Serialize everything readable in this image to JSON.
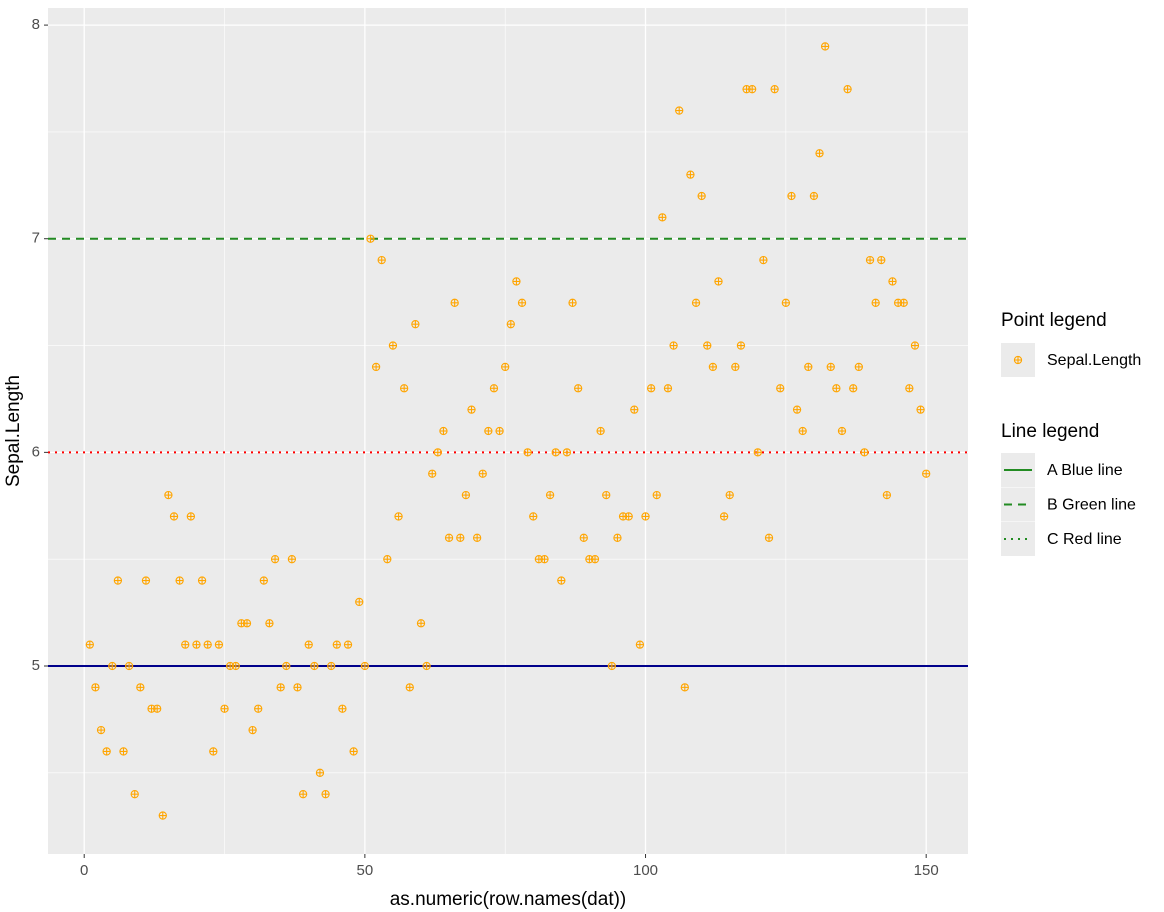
{
  "chart_data": {
    "type": "scatter",
    "x_label": "as.numeric(row.names(dat))",
    "y_label": "Sepal.Length",
    "xlim": [
      -6.45,
      157.45
    ],
    "xticks": [
      0,
      50,
      100,
      150
    ],
    "xminorticks": [
      25,
      75,
      125
    ],
    "ylim": [
      4.12,
      8.08
    ],
    "yticks": [
      5,
      6,
      7,
      8
    ],
    "yminorticks": [
      4.5,
      5.5,
      6.5,
      7.5
    ],
    "grid": true,
    "point_legend_title": "Point legend",
    "line_legend_title": "Line legend",
    "series": [
      {
        "name": "Sepal.Length",
        "color": "orange",
        "x": [
          1,
          2,
          3,
          4,
          5,
          6,
          7,
          8,
          9,
          10,
          11,
          12,
          13,
          14,
          15,
          16,
          17,
          18,
          19,
          20,
          21,
          22,
          23,
          24,
          25,
          26,
          27,
          28,
          29,
          30,
          31,
          32,
          33,
          34,
          35,
          36,
          37,
          38,
          39,
          40,
          41,
          42,
          43,
          44,
          45,
          46,
          47,
          48,
          49,
          50,
          51,
          52,
          53,
          54,
          55,
          56,
          57,
          58,
          59,
          60,
          61,
          62,
          63,
          64,
          65,
          66,
          67,
          68,
          69,
          70,
          71,
          72,
          73,
          74,
          75,
          76,
          77,
          78,
          79,
          80,
          81,
          82,
          83,
          84,
          85,
          86,
          87,
          88,
          89,
          90,
          91,
          92,
          93,
          94,
          95,
          96,
          97,
          98,
          99,
          100,
          101,
          102,
          103,
          104,
          105,
          106,
          107,
          108,
          109,
          110,
          111,
          112,
          113,
          114,
          115,
          116,
          117,
          118,
          119,
          120,
          121,
          122,
          123,
          124,
          125,
          126,
          127,
          128,
          129,
          130,
          131,
          132,
          133,
          134,
          135,
          136,
          137,
          138,
          139,
          140,
          141,
          142,
          143,
          144,
          145,
          146,
          147,
          148,
          149,
          150
        ],
        "values": [
          5.1,
          4.9,
          4.7,
          4.6,
          5.0,
          5.4,
          4.6,
          5.0,
          4.4,
          4.9,
          5.4,
          4.8,
          4.8,
          4.3,
          5.8,
          5.7,
          5.4,
          5.1,
          5.7,
          5.1,
          5.4,
          5.1,
          4.6,
          5.1,
          4.8,
          5.0,
          5.0,
          5.2,
          5.2,
          4.7,
          4.8,
          5.4,
          5.2,
          5.5,
          4.9,
          5.0,
          5.5,
          4.9,
          4.4,
          5.1,
          5.0,
          4.5,
          4.4,
          5.0,
          5.1,
          4.8,
          5.1,
          4.6,
          5.3,
          5.0,
          7.0,
          6.4,
          6.9,
          5.5,
          6.5,
          5.7,
          6.3,
          4.9,
          6.6,
          5.2,
          5.0,
          5.9,
          6.0,
          6.1,
          5.6,
          6.7,
          5.6,
          5.8,
          6.2,
          5.6,
          5.9,
          6.1,
          6.3,
          6.1,
          6.4,
          6.6,
          6.8,
          6.7,
          6.0,
          5.7,
          5.5,
          5.5,
          5.8,
          6.0,
          5.4,
          6.0,
          6.7,
          6.3,
          5.6,
          5.5,
          5.5,
          6.1,
          5.8,
          5.0,
          5.6,
          5.7,
          5.7,
          6.2,
          5.1,
          5.7,
          6.3,
          5.8,
          7.1,
          6.3,
          6.5,
          7.6,
          4.9,
          7.3,
          6.7,
          7.2,
          6.5,
          6.4,
          6.8,
          5.7,
          5.8,
          6.4,
          6.5,
          7.7,
          7.7,
          6.0,
          6.9,
          5.6,
          7.7,
          6.3,
          6.7,
          7.2,
          6.2,
          6.1,
          6.4,
          7.2,
          7.4,
          7.9,
          6.4,
          6.3,
          6.1,
          7.7,
          6.3,
          6.4,
          6.0,
          6.9,
          6.7,
          6.9,
          5.8,
          6.8,
          6.7,
          6.7,
          6.3,
          6.5,
          6.2,
          5.9
        ]
      }
    ],
    "hlines": [
      {
        "name": "A Blue line",
        "y": 5,
        "color": "#00008b",
        "linetype": "solid",
        "legend_color": "#228b22"
      },
      {
        "name": "B Green line",
        "y": 7,
        "color": "#228b22",
        "linetype": "dashed",
        "legend_color": "#228b22"
      },
      {
        "name": "C Red line",
        "y": 6,
        "color": "red",
        "linetype": "dotted",
        "legend_color": "#228b22"
      }
    ]
  }
}
